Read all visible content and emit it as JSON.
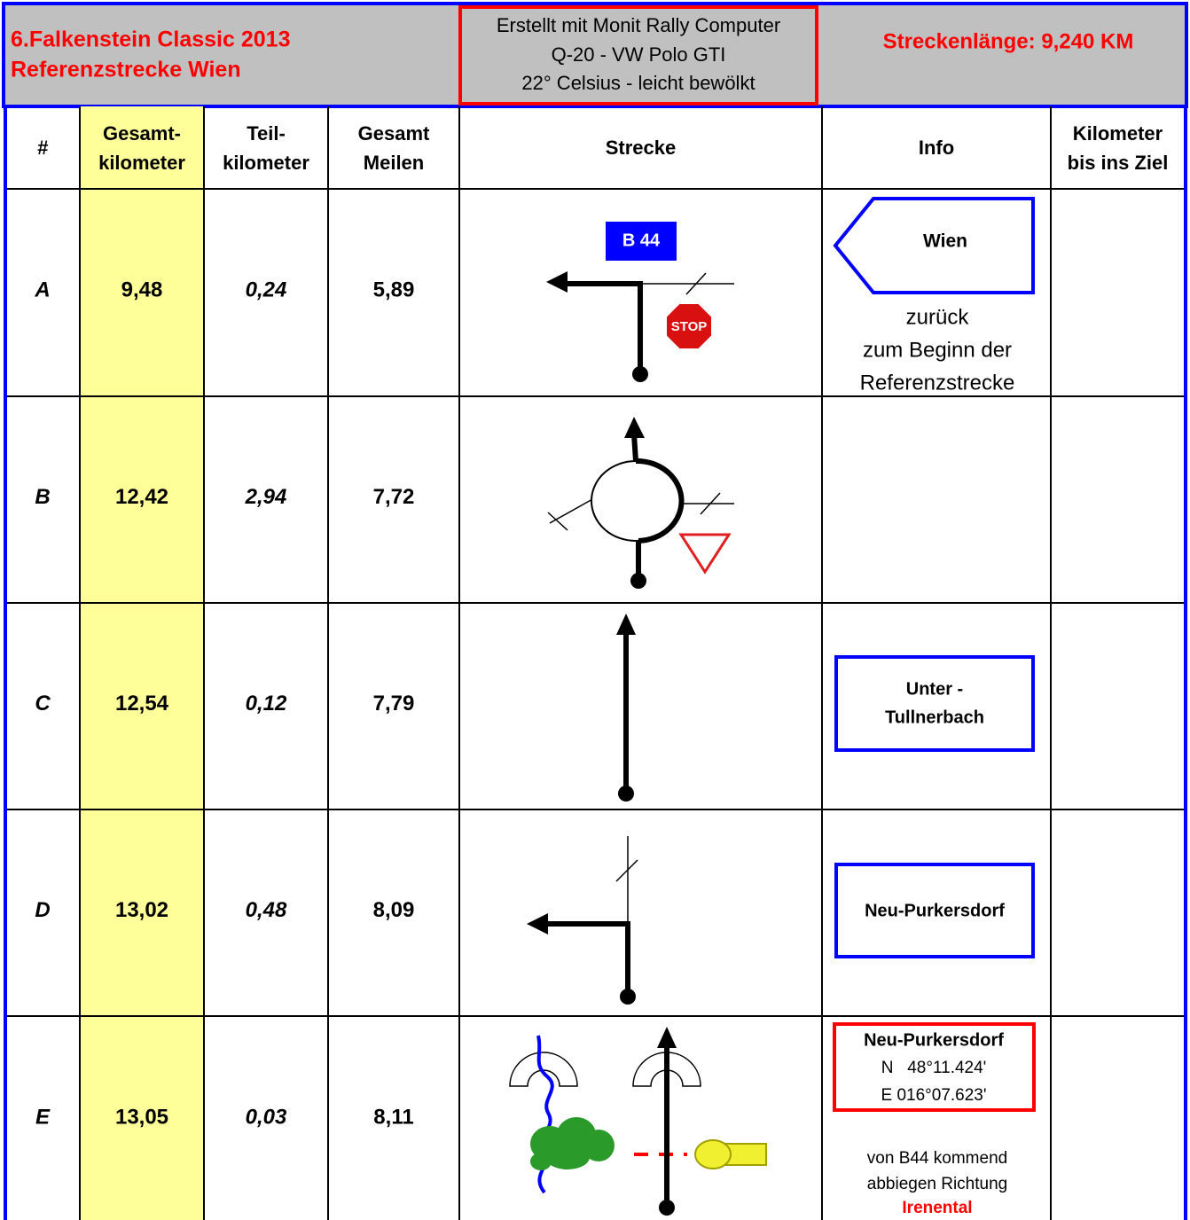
{
  "header": {
    "title": [
      "6.Falkenstein Classic 2013",
      "Referenzstrecke Wien"
    ],
    "info": [
      "Erstellt mit Monit Rally Computer",
      "Q-20 - VW Polo GTI",
      "22° Celsius - leicht bewölkt"
    ],
    "length": "Streckenlänge: 9,240 KM"
  },
  "table": {
    "columns": [
      [
        "#"
      ],
      [
        "Gesamt-",
        "kilometer"
      ],
      [
        "Teil-",
        "kilometer"
      ],
      [
        "Gesamt",
        "Meilen"
      ],
      [
        "Strecke"
      ],
      [
        "Info"
      ],
      [
        "Kilometer",
        "bis ins Ziel"
      ]
    ],
    "rows": [
      [
        "A",
        "9,48",
        "0,24",
        "5,89"
      ],
      [
        "B",
        "12,42",
        "2,94",
        "7,72"
      ],
      [
        "C",
        "12,54",
        "0,12",
        "7,79"
      ],
      [
        "D",
        "13,02",
        "0,48",
        "8,09"
      ],
      [
        "E",
        "13,05",
        "0,03",
        "8,11"
      ]
    ]
  },
  "details": {
    "A": {
      "road": "B 44",
      "sign": "STOP",
      "info_sign": "Wien",
      "info_note": [
        "zurück",
        "zum Beginn der",
        "Referenzstrecke"
      ]
    },
    "C": {
      "info_sign": [
        "Unter -",
        "Tullnerbach"
      ]
    },
    "D": {
      "info_sign": "Neu-Purkersdorf"
    },
    "E": {
      "info_box": [
        "Neu-Purkersdorf",
        "N   48°11.424'",
        "E 016°07.623'"
      ],
      "info_note": [
        "von B44 kommend",
        "abbiegen Richtung",
        "Irenental"
      ]
    }
  }
}
